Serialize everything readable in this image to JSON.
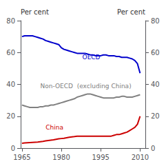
{
  "chart_data": {
    "type": "line",
    "ylabel": "Per cent",
    "y2label": "Per cent",
    "x": [
      1965,
      1966,
      1967,
      1968,
      1969,
      1970,
      1971,
      1972,
      1973,
      1974,
      1975,
      1976,
      1977,
      1978,
      1979,
      1980,
      1981,
      1982,
      1983,
      1984,
      1985,
      1986,
      1987,
      1988,
      1989,
      1990,
      1991,
      1992,
      1993,
      1994,
      1995,
      1996,
      1997,
      1998,
      1999,
      2000,
      2001,
      2002,
      2003,
      2004,
      2005,
      2006,
      2007,
      2008,
      2009,
      2010
    ],
    "series": [
      {
        "name": "OECD",
        "color": "#0000cc",
        "values": [
          70,
          70.5,
          70.5,
          70.5,
          70.5,
          70,
          69.5,
          69,
          68.5,
          67.5,
          67,
          66.5,
          66,
          65.5,
          65,
          63,
          62,
          61.5,
          61,
          60.5,
          60,
          59.5,
          59.5,
          59.5,
          59.5,
          59,
          58.5,
          58.5,
          58,
          58,
          58,
          58.5,
          58.5,
          58,
          58,
          58,
          57.5,
          57.5,
          57,
          57,
          57,
          56.5,
          56,
          55,
          53,
          47
        ]
      },
      {
        "name": "Non-OECD  (excluding China)",
        "color": "#808080",
        "values": [
          27,
          26.5,
          26,
          25.5,
          25.5,
          25.5,
          25.5,
          26,
          26,
          26.5,
          26.5,
          27,
          27,
          27.5,
          28,
          28.5,
          29,
          29.5,
          30,
          30.5,
          31,
          32,
          32.5,
          33,
          33.5,
          34,
          34,
          33.5,
          33,
          32.5,
          32,
          31.5,
          31.5,
          31.5,
          31.5,
          31.5,
          32,
          32,
          32.5,
          32.5,
          32,
          32,
          32,
          32.5,
          33,
          33.5
        ]
      },
      {
        "name": "China",
        "color": "#cc0000",
        "values": [
          3,
          3.2,
          3.4,
          3.5,
          3.6,
          3.7,
          3.8,
          4,
          4.2,
          4.5,
          4.8,
          5,
          5.2,
          5.5,
          5.8,
          6,
          6.2,
          6.5,
          6.8,
          7,
          7.2,
          7.5,
          7.5,
          7.5,
          7.5,
          7.5,
          7.5,
          7.5,
          7.5,
          7.5,
          7.5,
          7.5,
          7.5,
          7.5,
          7.5,
          8,
          8.5,
          8.5,
          9,
          9.5,
          10,
          11,
          12,
          13,
          15,
          20
        ]
      }
    ],
    "annotations": [
      {
        "text": "OECD",
        "x": 1988,
        "y": 57,
        "color": "#0000cc"
      },
      {
        "text": "Non-OECD  (excluding China)",
        "x": 1972,
        "y": 39,
        "color": "#808080"
      },
      {
        "text": "China",
        "x": 1974,
        "y": 13,
        "color": "#cc0000"
      }
    ],
    "xlim": [
      1964.5,
      2012
    ],
    "xticks": [
      1965,
      1980,
      1995,
      2010
    ],
    "ylim": [
      0,
      80
    ],
    "yticks": [
      0,
      20,
      40,
      60,
      80
    ],
    "y2lim": [
      0,
      80
    ],
    "y2ticks": [
      0,
      20,
      40,
      60,
      80
    ],
    "grid": false
  }
}
